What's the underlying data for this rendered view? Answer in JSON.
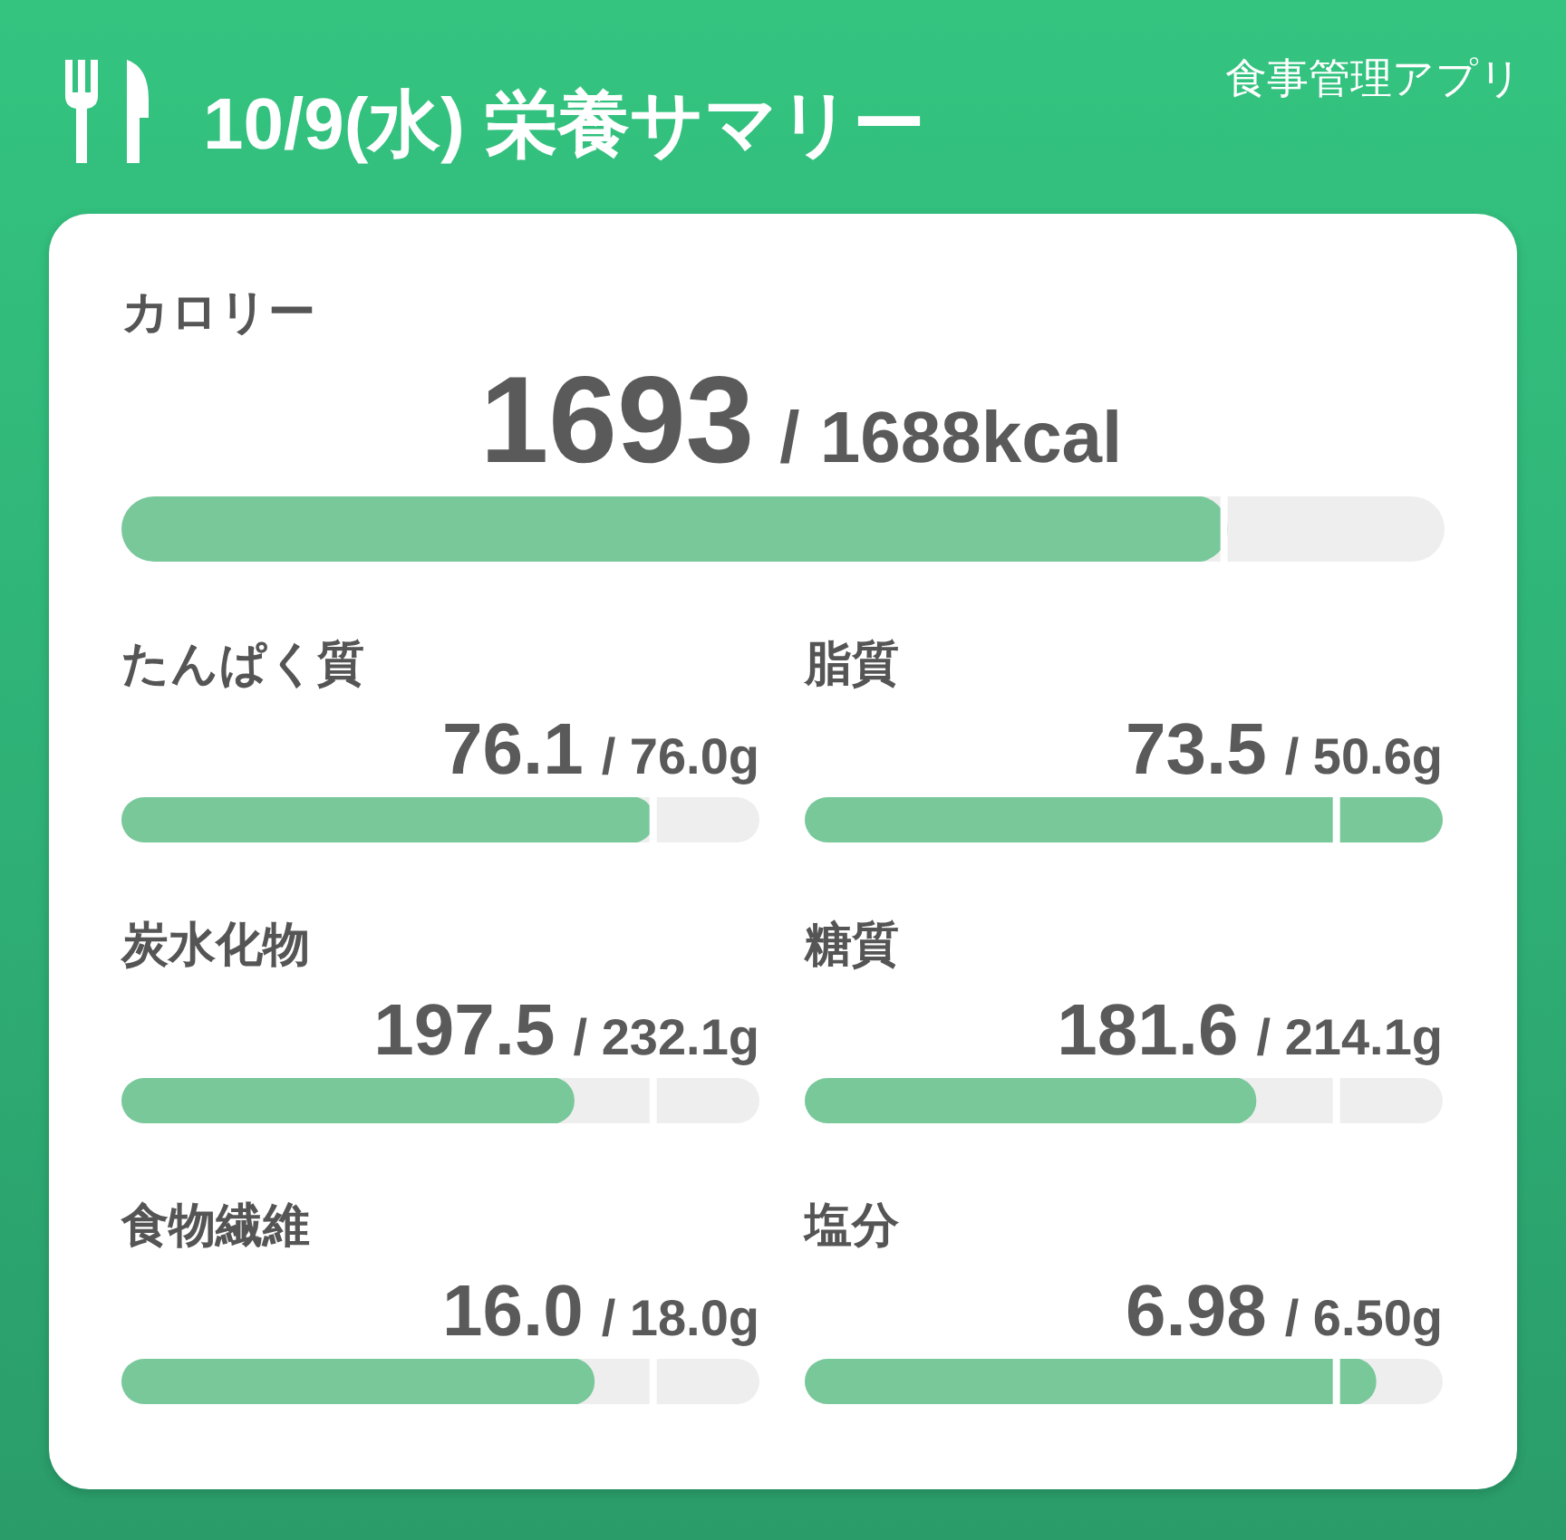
{
  "chart_data": [
    {
      "type": "other",
      "title": "10/9(水) 栄養サマリー",
      "annotations": [
        "食事管理アプリ"
      ]
    },
    {
      "type": "other",
      "title": "カロリー",
      "values": [
        1693,
        1688
      ],
      "value_labels": [
        "1693",
        "/ 1688kcal"
      ],
      "colors": [
        "#78c89a",
        "#ffffff"
      ]
    },
    {
      "type": "other",
      "title": "たんぱく質",
      "values": [
        76.1,
        76.0
      ],
      "value_labels": [
        "76.1",
        "/ 76.0g"
      ],
      "colors": [
        "#78c89a",
        "#ffffff"
      ]
    },
    {
      "type": "other",
      "title": "脂質",
      "values": [
        73.5,
        50.6
      ],
      "value_labels": [
        "73.5",
        "/ 50.6g"
      ],
      "colors": [
        "#78c89a",
        "#ffffff"
      ]
    },
    {
      "type": "other",
      "title": "炭水化物",
      "values": [
        197.5,
        232.1
      ],
      "value_labels": [
        "197.5",
        "/ 232.1g"
      ],
      "colors": [
        "#78c89a",
        "#ffffff"
      ]
    },
    {
      "type": "other",
      "title": "糖質",
      "values": [
        181.6,
        214.1
      ],
      "value_labels": [
        "181.6",
        "/ 214.1g"
      ],
      "colors": [
        "#78c89a",
        "#ffffff"
      ]
    },
    {
      "type": "other",
      "title": "食物繊維",
      "values": [
        16.0,
        18.0
      ],
      "value_labels": [
        "16.0",
        "/ 18.0g"
      ],
      "colors": [
        "#78c89a",
        "#ffffff"
      ]
    },
    {
      "type": "other",
      "title": "塩分",
      "values": [
        6.98,
        6.5
      ],
      "value_labels": [
        "6.98",
        "/ 6.50g"
      ],
      "colors": [
        "#78c89a",
        "#ffffff"
      ]
    }
  ]
}
